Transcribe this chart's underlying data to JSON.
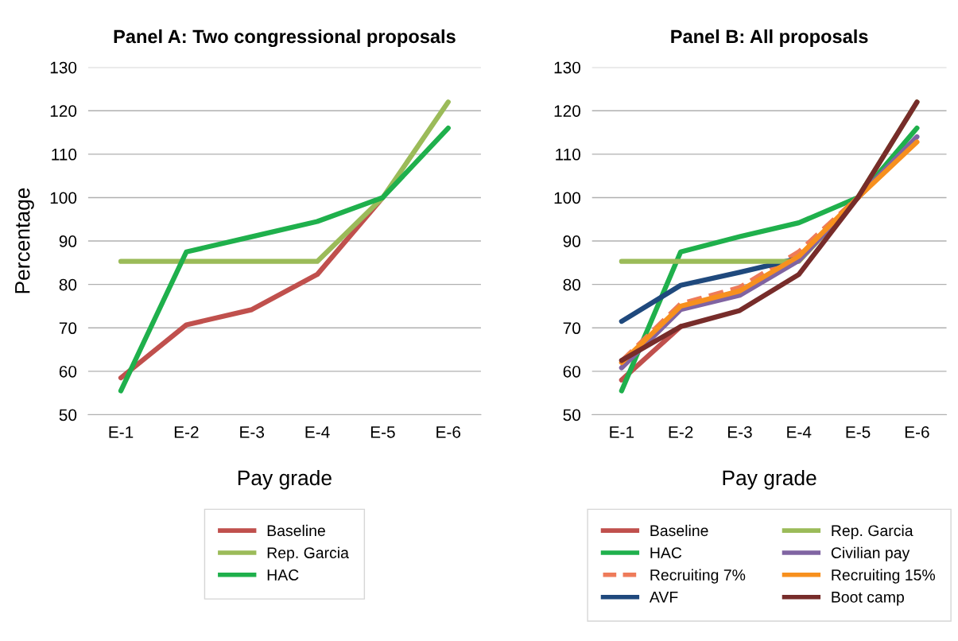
{
  "chart_data": [
    {
      "type": "line",
      "title": "Panel A: Two congressional proposals",
      "xlabel": "Pay grade",
      "ylabel": "Percentage",
      "categories": [
        "E-1",
        "E-2",
        "E-3",
        "E-4",
        "E-5",
        "E-6"
      ],
      "ylim": [
        50,
        130
      ],
      "yticks": [
        50,
        60,
        70,
        80,
        90,
        100,
        110,
        120,
        130
      ],
      "grid": "y",
      "legend": "bottom",
      "line_style": "solid",
      "marker": "none",
      "series": [
        {
          "name": "Baseline",
          "color": "#c0504d",
          "values": [
            58.5,
            70.7,
            74.2,
            82.3,
            100,
            null
          ]
        },
        {
          "name": "Rep. Garcia",
          "color": "#9bbb59",
          "values": [
            85.3,
            85.3,
            85.3,
            85.3,
            100,
            122
          ]
        },
        {
          "name": "HAC",
          "color": "#1fb04c",
          "values": [
            55.5,
            87.5,
            91,
            94.5,
            100,
            116
          ]
        }
      ]
    },
    {
      "type": "line",
      "title": "Panel B: All proposals",
      "xlabel": "Pay grade",
      "categories": [
        "E-1",
        "E-2",
        "E-3",
        "E-4",
        "E-5",
        "E-6"
      ],
      "ylim": [
        50,
        130
      ],
      "yticks": [
        50,
        60,
        70,
        80,
        90,
        100,
        110,
        120,
        130
      ],
      "grid": "y",
      "legend": "bottom",
      "line_style": "solid",
      "marker": "none",
      "series": [
        {
          "name": "Baseline",
          "color": "#c0504d",
          "values": [
            58,
            70.3,
            null,
            null,
            null,
            null
          ]
        },
        {
          "name": "HAC",
          "color": "#1fb04c",
          "values": [
            55.5,
            87.5,
            91,
            94.2,
            100,
            116
          ]
        },
        {
          "name": "Recruiting 7%",
          "color": "#ee7b5a",
          "line_style": "dashed",
          "values": [
            62.3,
            75.5,
            79.3,
            87.5,
            100,
            113.5
          ]
        },
        {
          "name": "AVF",
          "color": "#1f497d",
          "values": [
            71.5,
            79.8,
            82.8,
            86,
            100,
            null
          ]
        },
        {
          "name": "Rep. Garcia",
          "color": "#9bbb59",
          "values": [
            85.3,
            85.3,
            85.3,
            85.3,
            100,
            122
          ]
        },
        {
          "name": "Civilian pay",
          "color": "#8064a2",
          "values": [
            60.8,
            74.2,
            77.5,
            85.5,
            100,
            114
          ]
        },
        {
          "name": "Recruiting 15%",
          "color": "#f7901e",
          "values": [
            62,
            75,
            78.5,
            86.5,
            100,
            112.8
          ]
        },
        {
          "name": "Boot camp",
          "color": "#772c2a",
          "values": [
            62.5,
            70.3,
            74,
            82.3,
            100,
            122
          ]
        }
      ]
    }
  ]
}
